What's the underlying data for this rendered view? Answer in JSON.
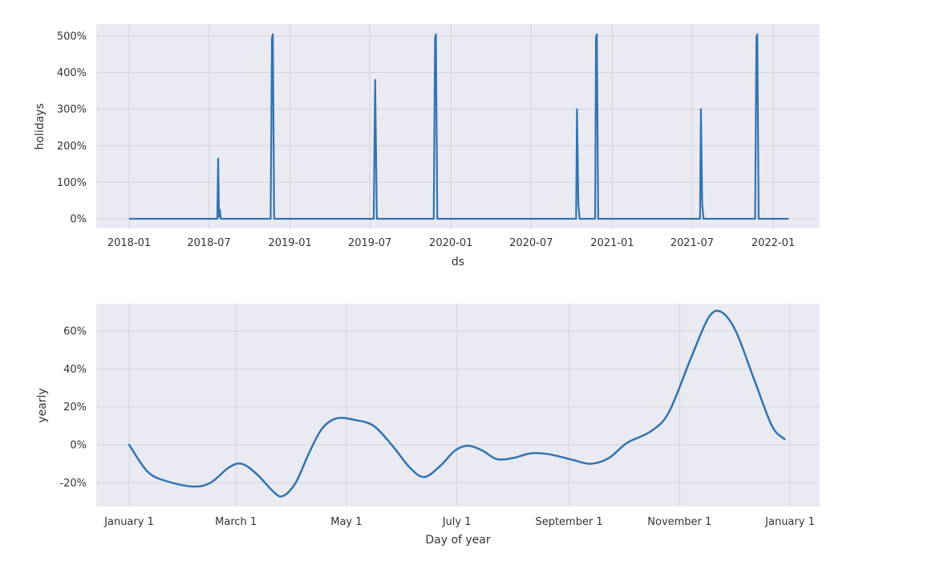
{
  "chart_data": [
    {
      "type": "line",
      "title": "",
      "xlabel": "ds",
      "ylabel": "holidays",
      "ylim": [
        -25,
        525
      ],
      "grid": true,
      "x_ticks": [
        "2018-01",
        "2018-07",
        "2019-01",
        "2019-07",
        "2020-01",
        "2020-07",
        "2021-01",
        "2021-07",
        "2022-01"
      ],
      "y_ticks": [
        "0%",
        "100%",
        "200%",
        "300%",
        "400%",
        "500%"
      ],
      "y_tick_values": [
        0,
        100,
        200,
        300,
        400,
        500
      ],
      "x_range": [
        "2017-10-17",
        "2022-04-15"
      ],
      "series": [
        {
          "name": "holidays",
          "color": "#3274b0",
          "points": [
            {
              "x": "2018-01-01",
              "y": 0
            },
            {
              "x": "2018-07-20",
              "y": 0
            },
            {
              "x": "2018-07-22",
              "y": 165
            },
            {
              "x": "2018-07-24",
              "y": 5
            },
            {
              "x": "2018-07-26",
              "y": 25
            },
            {
              "x": "2018-07-28",
              "y": 0
            },
            {
              "x": "2018-11-18",
              "y": 0
            },
            {
              "x": "2018-11-21",
              "y": 495
            },
            {
              "x": "2018-11-23",
              "y": 505
            },
            {
              "x": "2018-11-26",
              "y": 0
            },
            {
              "x": "2019-07-10",
              "y": 0
            },
            {
              "x": "2019-07-13",
              "y": 380
            },
            {
              "x": "2019-07-17",
              "y": 0
            },
            {
              "x": "2019-11-23",
              "y": 0
            },
            {
              "x": "2019-11-26",
              "y": 495
            },
            {
              "x": "2019-11-28",
              "y": 505
            },
            {
              "x": "2019-12-01",
              "y": 0
            },
            {
              "x": "2020-10-11",
              "y": 0
            },
            {
              "x": "2020-10-13",
              "y": 300
            },
            {
              "x": "2020-10-16",
              "y": 40
            },
            {
              "x": "2020-10-19",
              "y": 0
            },
            {
              "x": "2020-11-23",
              "y": 0
            },
            {
              "x": "2020-11-25",
              "y": 495
            },
            {
              "x": "2020-11-27",
              "y": 505
            },
            {
              "x": "2020-11-30",
              "y": 0
            },
            {
              "x": "2021-07-19",
              "y": 0
            },
            {
              "x": "2021-07-21",
              "y": 300
            },
            {
              "x": "2021-07-24",
              "y": 40
            },
            {
              "x": "2021-07-27",
              "y": 0
            },
            {
              "x": "2021-11-21",
              "y": 0
            },
            {
              "x": "2021-11-24",
              "y": 495
            },
            {
              "x": "2021-11-26",
              "y": 505
            },
            {
              "x": "2021-11-29",
              "y": 0
            },
            {
              "x": "2022-02-05",
              "y": 0
            }
          ]
        }
      ]
    },
    {
      "type": "line",
      "title": "",
      "xlabel": "Day of year",
      "ylabel": "yearly",
      "ylim": [
        -33,
        74
      ],
      "grid": true,
      "x_ticks": [
        "January 1",
        "March 1",
        "May 1",
        "July 1",
        "September 1",
        "November 1",
        "January 1"
      ],
      "y_ticks": [
        "-20%",
        "0%",
        "20%",
        "40%",
        "60%"
      ],
      "y_tick_values": [
        -20,
        0,
        20,
        40,
        60
      ],
      "series": [
        {
          "name": "yearly",
          "color": "#3274b0",
          "points": [
            {
              "day": 0,
              "y": 0
            },
            {
              "day": 10,
              "y": -14
            },
            {
              "day": 20,
              "y": -19
            },
            {
              "day": 35,
              "y": -22
            },
            {
              "day": 45,
              "y": -20
            },
            {
              "day": 55,
              "y": -12
            },
            {
              "day": 62,
              "y": -10
            },
            {
              "day": 70,
              "y": -15
            },
            {
              "day": 80,
              "y": -25
            },
            {
              "day": 85,
              "y": -27
            },
            {
              "day": 92,
              "y": -20
            },
            {
              "day": 100,
              "y": -3
            },
            {
              "day": 107,
              "y": 9
            },
            {
              "day": 115,
              "y": 14
            },
            {
              "day": 125,
              "y": 13
            },
            {
              "day": 135,
              "y": 10
            },
            {
              "day": 145,
              "y": 0
            },
            {
              "day": 155,
              "y": -12
            },
            {
              "day": 163,
              "y": -17
            },
            {
              "day": 172,
              "y": -11
            },
            {
              "day": 180,
              "y": -3
            },
            {
              "day": 187,
              "y": -0.5
            },
            {
              "day": 195,
              "y": -3
            },
            {
              "day": 203,
              "y": -7.5
            },
            {
              "day": 212,
              "y": -7
            },
            {
              "day": 222,
              "y": -4.5
            },
            {
              "day": 232,
              "y": -5
            },
            {
              "day": 245,
              "y": -8
            },
            {
              "day": 255,
              "y": -10
            },
            {
              "day": 265,
              "y": -7
            },
            {
              "day": 275,
              "y": 1
            },
            {
              "day": 288,
              "y": 7
            },
            {
              "day": 298,
              "y": 17
            },
            {
              "day": 310,
              "y": 45
            },
            {
              "day": 320,
              "y": 67
            },
            {
              "day": 327,
              "y": 70
            },
            {
              "day": 335,
              "y": 60
            },
            {
              "day": 345,
              "y": 35
            },
            {
              "day": 355,
              "y": 10
            },
            {
              "day": 362,
              "y": 3
            }
          ]
        }
      ]
    }
  ],
  "plots": {
    "top": {
      "ylabel": "holidays",
      "xlabel": "ds",
      "x_ticks": [
        "2018-01",
        "2018-07",
        "2019-01",
        "2019-07",
        "2020-01",
        "2020-07",
        "2021-01",
        "2021-07",
        "2022-01"
      ],
      "y_ticks": [
        "500%",
        "400%",
        "300%",
        "200%",
        "100%",
        "0%"
      ]
    },
    "bottom": {
      "ylabel": "yearly",
      "xlabel": "Day of year",
      "x_ticks": [
        "January 1",
        "March 1",
        "May 1",
        "July 1",
        "September 1",
        "November 1",
        "January 1"
      ],
      "y_ticks": [
        "60%",
        "40%",
        "20%",
        "0%",
        "-20%"
      ]
    }
  },
  "colors": {
    "axes_bg": "#eaeaf2",
    "grid": "#d3d3dc",
    "line": "#3274b0",
    "text": "#333333"
  }
}
